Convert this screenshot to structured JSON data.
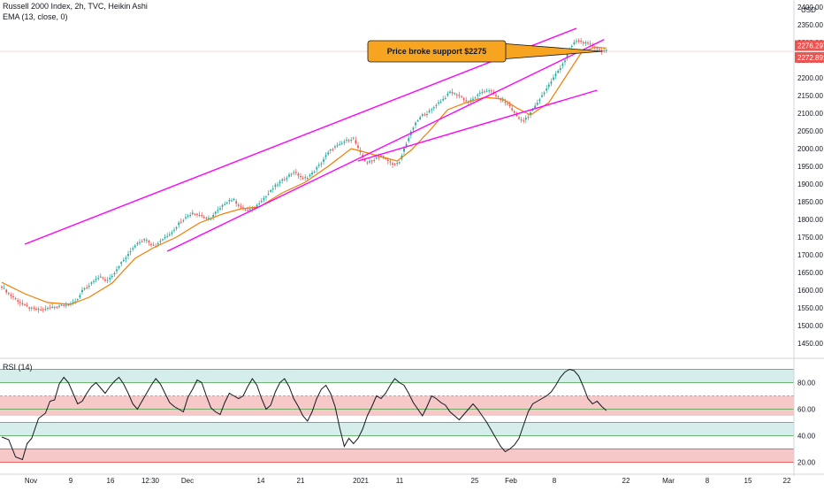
{
  "legend": {
    "title": "Russell 2000 Index, 2h, TVC, Heikin Ashi",
    "ema": "EMA (13, close, 0)",
    "rsi": "RSI (14)"
  },
  "colors": {
    "up": "#26a69a",
    "down": "#ef5350",
    "ema": "#f57c00",
    "channel": "#ff00ff",
    "rsi_line": "#131722",
    "band_upper": "#b2dfdb",
    "band_mid": "#ef9a9a",
    "band_lower": "#e1bee7"
  },
  "annotation": {
    "text": "Price broke support $2275"
  },
  "currency": "USD",
  "chart_data": [
    {
      "type": "candlestick",
      "title": "Russell 2000 Index, 2h, TVC, Heikin Ashi",
      "currency": "USD",
      "ylim": [
        1420,
        2420
      ],
      "yticks": [
        1450,
        1500,
        1550,
        1600,
        1650,
        1700,
        1750,
        1800,
        1850,
        1900,
        1950,
        2000,
        2050,
        2100,
        2150,
        2200,
        2250,
        2300,
        2350,
        2400
      ],
      "ytick_labels": [
        "1450.00",
        "1500.00",
        "1550.00",
        "1600.00",
        "1650.00",
        "1700.00",
        "1750.00",
        "1800.00",
        "1850.00",
        "1900.00",
        "1950.00",
        "2000.00",
        "2050.00",
        "2100.00",
        "2150.00",
        "2200.00",
        "2250.00",
        "2300.00",
        "2350.00",
        "2400.00"
      ],
      "price_labels": [
        {
          "value": 2276.297,
          "label": "2276.297",
          "color": "#ef5350"
        },
        {
          "value": 2272.891,
          "label": "2272.891",
          "color": "#ef5350"
        }
      ],
      "support_level": 2275,
      "xticks": [
        "Nov",
        "9",
        "16",
        "12:30",
        "Dec",
        "14",
        "21",
        "2021",
        "11",
        "25",
        "Feb",
        "8",
        "22",
        "Mar",
        "8",
        "15",
        "22"
      ],
      "close_path": [
        [
          0,
          1610
        ],
        [
          3,
          1590
        ],
        [
          6,
          1575
        ],
        [
          9,
          1560
        ],
        [
          12,
          1550
        ],
        [
          15,
          1545
        ],
        [
          18,
          1545
        ],
        [
          21,
          1550
        ],
        [
          24,
          1555
        ],
        [
          27,
          1560
        ],
        [
          30,
          1560
        ],
        [
          33,
          1575
        ],
        [
          35,
          1600
        ],
        [
          37,
          1605
        ],
        [
          39,
          1620
        ],
        [
          41,
          1630
        ],
        [
          43,
          1640
        ],
        [
          45,
          1625
        ],
        [
          47,
          1635
        ],
        [
          49,
          1650
        ],
        [
          51,
          1670
        ],
        [
          53,
          1685
        ],
        [
          55,
          1700
        ],
        [
          57,
          1720
        ],
        [
          59,
          1735
        ],
        [
          61,
          1740
        ],
        [
          63,
          1745
        ],
        [
          65,
          1730
        ],
        [
          67,
          1725
        ],
        [
          69,
          1740
        ],
        [
          71,
          1750
        ],
        [
          73,
          1760
        ],
        [
          75,
          1770
        ],
        [
          77,
          1790
        ],
        [
          79,
          1800
        ],
        [
          81,
          1810
        ],
        [
          83,
          1820
        ],
        [
          85,
          1815
        ],
        [
          87,
          1810
        ],
        [
          89,
          1800
        ],
        [
          91,
          1805
        ],
        [
          93,
          1820
        ],
        [
          95,
          1830
        ],
        [
          97,
          1845
        ],
        [
          99,
          1855
        ],
        [
          101,
          1855
        ],
        [
          103,
          1840
        ],
        [
          105,
          1830
        ],
        [
          107,
          1825
        ],
        [
          109,
          1830
        ],
        [
          111,
          1840
        ],
        [
          113,
          1855
        ],
        [
          115,
          1865
        ],
        [
          117,
          1880
        ],
        [
          119,
          1895
        ],
        [
          121,
          1905
        ],
        [
          123,
          1915
        ],
        [
          125,
          1925
        ],
        [
          127,
          1935
        ],
        [
          129,
          1925
        ],
        [
          131,
          1915
        ],
        [
          133,
          1920
        ],
        [
          135,
          1930
        ],
        [
          137,
          1945
        ],
        [
          139,
          1960
        ],
        [
          141,
          1980
        ],
        [
          143,
          1995
        ],
        [
          145,
          2005
        ],
        [
          147,
          2010
        ],
        [
          149,
          2020
        ],
        [
          151,
          2025
        ],
        [
          153,
          2030
        ],
        [
          155,
          2000
        ],
        [
          157,
          1975
        ],
        [
          159,
          1960
        ],
        [
          161,
          1965
        ],
        [
          163,
          1975
        ],
        [
          165,
          1980
        ],
        [
          167,
          1970
        ],
        [
          169,
          1960
        ],
        [
          171,
          1955
        ],
        [
          173,
          1960
        ],
        [
          175,
          2000
        ],
        [
          177,
          2030
        ],
        [
          179,
          2060
        ],
        [
          181,
          2080
        ],
        [
          183,
          2095
        ],
        [
          185,
          2100
        ],
        [
          187,
          2110
        ],
        [
          189,
          2125
        ],
        [
          191,
          2135
        ],
        [
          193,
          2145
        ],
        [
          195,
          2160
        ],
        [
          197,
          2155
        ],
        [
          199,
          2150
        ],
        [
          201,
          2140
        ],
        [
          203,
          2130
        ],
        [
          205,
          2140
        ],
        [
          207,
          2150
        ],
        [
          209,
          2160
        ],
        [
          211,
          2165
        ],
        [
          213,
          2160
        ],
        [
          215,
          2150
        ],
        [
          217,
          2140
        ],
        [
          219,
          2130
        ],
        [
          221,
          2120
        ],
        [
          223,
          2100
        ],
        [
          225,
          2085
        ],
        [
          227,
          2080
        ],
        [
          229,
          2090
        ],
        [
          231,
          2110
        ],
        [
          233,
          2130
        ],
        [
          235,
          2150
        ],
        [
          237,
          2170
        ],
        [
          239,
          2190
        ],
        [
          241,
          2210
        ],
        [
          243,
          2230
        ],
        [
          245,
          2250
        ],
        [
          247,
          2280
        ],
        [
          249,
          2300
        ],
        [
          251,
          2305
        ],
        [
          253,
          2300
        ],
        [
          255,
          2295
        ],
        [
          257,
          2290
        ],
        [
          259,
          2282
        ],
        [
          261,
          2278
        ],
        [
          263,
          2276
        ]
      ],
      "ema_path": [
        [
          0,
          1622
        ],
        [
          10,
          1590
        ],
        [
          20,
          1565
        ],
        [
          30,
          1560
        ],
        [
          38,
          1580
        ],
        [
          48,
          1620
        ],
        [
          58,
          1690
        ],
        [
          66,
          1720
        ],
        [
          76,
          1750
        ],
        [
          86,
          1790
        ],
        [
          96,
          1815
        ],
        [
          104,
          1830
        ],
        [
          112,
          1835
        ],
        [
          122,
          1875
        ],
        [
          132,
          1905
        ],
        [
          142,
          1950
        ],
        [
          152,
          2000
        ],
        [
          158,
          1990
        ],
        [
          166,
          1975
        ],
        [
          172,
          1965
        ],
        [
          178,
          1995
        ],
        [
          186,
          2050
        ],
        [
          194,
          2110
        ],
        [
          202,
          2130
        ],
        [
          210,
          2145
        ],
        [
          218,
          2140
        ],
        [
          224,
          2115
        ],
        [
          230,
          2095
        ],
        [
          238,
          2130
        ],
        [
          246,
          2210
        ],
        [
          252,
          2270
        ],
        [
          258,
          2287
        ],
        [
          263,
          2284
        ]
      ],
      "trendlines": [
        {
          "from": [
            10,
            1730
          ],
          "to": [
            250,
            2340
          ]
        },
        {
          "from": [
            72,
            1710
          ],
          "to": [
            262,
            2308
          ]
        },
        {
          "from": [
            155,
            1965
          ],
          "to": [
            259,
            2165
          ]
        }
      ]
    },
    {
      "type": "line",
      "title": "RSI (14)",
      "ylim": [
        15,
        95
      ],
      "yticks": [
        20,
        40,
        60,
        80
      ],
      "ytick_labels": [
        "20.00",
        "40.00",
        "60.00",
        "80.00"
      ],
      "bands": [
        {
          "from": 80,
          "to": 90,
          "color": "#b2dfdb"
        },
        {
          "from": 55,
          "to": 70,
          "color": "#ef9a9a"
        },
        {
          "from": 40,
          "to": 50,
          "color": "#b2dfdb"
        },
        {
          "from": 20,
          "to": 30,
          "color": "#ef9a9a"
        }
      ],
      "levels": [
        90,
        80,
        70,
        60,
        50,
        40,
        30,
        20
      ],
      "values": [
        [
          0,
          39
        ],
        [
          3,
          37
        ],
        [
          6,
          24
        ],
        [
          9,
          22
        ],
        [
          11,
          34
        ],
        [
          13,
          38
        ],
        [
          16,
          53
        ],
        [
          19,
          57
        ],
        [
          21,
          66
        ],
        [
          23,
          67
        ],
        [
          25,
          79
        ],
        [
          27,
          84
        ],
        [
          29,
          80
        ],
        [
          31,
          72
        ],
        [
          33,
          64
        ],
        [
          35,
          66
        ],
        [
          37,
          72
        ],
        [
          39,
          77
        ],
        [
          41,
          80
        ],
        [
          43,
          76
        ],
        [
          45,
          72
        ],
        [
          47,
          77
        ],
        [
          49,
          81
        ],
        [
          51,
          84
        ],
        [
          53,
          79
        ],
        [
          55,
          72
        ],
        [
          57,
          64
        ],
        [
          59,
          60
        ],
        [
          61,
          66
        ],
        [
          63,
          72
        ],
        [
          65,
          78
        ],
        [
          67,
          83
        ],
        [
          69,
          79
        ],
        [
          71,
          72
        ],
        [
          73,
          65
        ],
        [
          75,
          62
        ],
        [
          77,
          60
        ],
        [
          79,
          58
        ],
        [
          81,
          69
        ],
        [
          83,
          75
        ],
        [
          85,
          82
        ],
        [
          87,
          80
        ],
        [
          89,
          70
        ],
        [
          91,
          61
        ],
        [
          93,
          58
        ],
        [
          95,
          56
        ],
        [
          97,
          65
        ],
        [
          99,
          72
        ],
        [
          101,
          70
        ],
        [
          103,
          68
        ],
        [
          105,
          70
        ],
        [
          107,
          77
        ],
        [
          109,
          83
        ],
        [
          111,
          78
        ],
        [
          113,
          68
        ],
        [
          115,
          60
        ],
        [
          117,
          63
        ],
        [
          119,
          73
        ],
        [
          121,
          80
        ],
        [
          123,
          83
        ],
        [
          125,
          77
        ],
        [
          127,
          68
        ],
        [
          129,
          62
        ],
        [
          131,
          55
        ],
        [
          133,
          51
        ],
        [
          135,
          58
        ],
        [
          137,
          68
        ],
        [
          139,
          75
        ],
        [
          141,
          78
        ],
        [
          143,
          72
        ],
        [
          145,
          62
        ],
        [
          147,
          46
        ],
        [
          149,
          32
        ],
        [
          151,
          38
        ],
        [
          153,
          34
        ],
        [
          155,
          38
        ],
        [
          157,
          45
        ],
        [
          159,
          55
        ],
        [
          161,
          62
        ],
        [
          163,
          70
        ],
        [
          165,
          68
        ],
        [
          167,
          72
        ],
        [
          169,
          78
        ],
        [
          171,
          83
        ],
        [
          173,
          80
        ],
        [
          175,
          78
        ],
        [
          177,
          72
        ],
        [
          179,
          65
        ],
        [
          181,
          60
        ],
        [
          183,
          55
        ],
        [
          185,
          62
        ],
        [
          187,
          70
        ],
        [
          189,
          68
        ],
        [
          191,
          65
        ],
        [
          193,
          63
        ],
        [
          195,
          58
        ],
        [
          197,
          55
        ],
        [
          199,
          52
        ],
        [
          201,
          56
        ],
        [
          203,
          60
        ],
        [
          205,
          64
        ],
        [
          207,
          60
        ],
        [
          209,
          55
        ],
        [
          211,
          50
        ],
        [
          213,
          44
        ],
        [
          215,
          38
        ],
        [
          217,
          32
        ],
        [
          219,
          28
        ],
        [
          221,
          30
        ],
        [
          223,
          33
        ],
        [
          225,
          38
        ],
        [
          227,
          48
        ],
        [
          229,
          58
        ],
        [
          231,
          64
        ],
        [
          233,
          66
        ],
        [
          235,
          68
        ],
        [
          237,
          70
        ],
        [
          239,
          73
        ],
        [
          241,
          78
        ],
        [
          243,
          84
        ],
        [
          245,
          88
        ],
        [
          247,
          90
        ],
        [
          249,
          89
        ],
        [
          251,
          85
        ],
        [
          253,
          77
        ],
        [
          255,
          68
        ],
        [
          257,
          64
        ],
        [
          259,
          66
        ],
        [
          261,
          62
        ],
        [
          263,
          59
        ]
      ]
    }
  ]
}
